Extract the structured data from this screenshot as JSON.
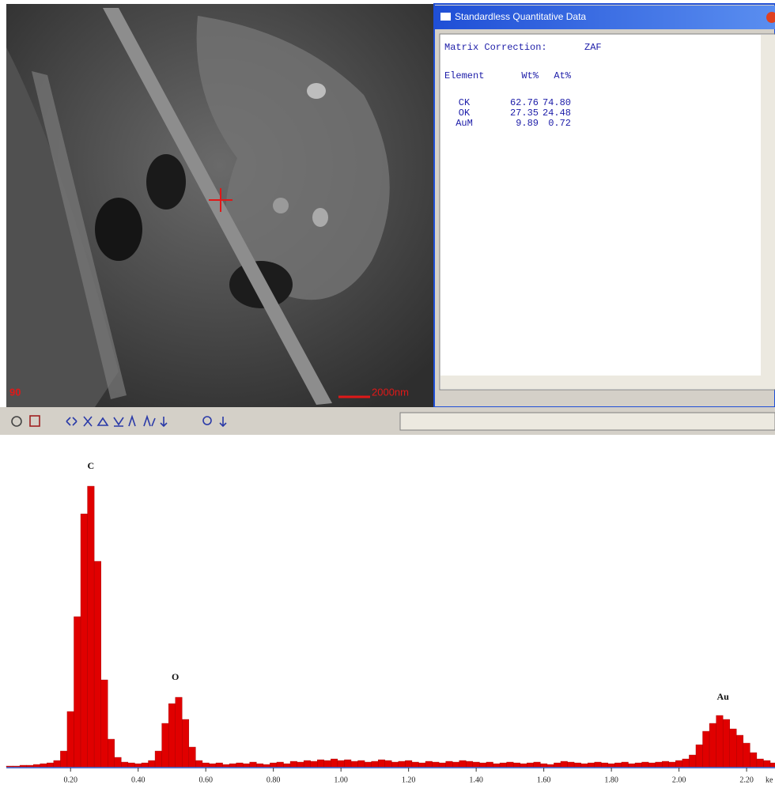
{
  "sem_image": {
    "corner_label": "90",
    "scale_bar_label": "2000nm"
  },
  "window": {
    "title": "Standardless Quantitative Data",
    "matrix_correction_label": "Matrix Correction:",
    "matrix_correction_value": "ZAF",
    "table": {
      "header": [
        "Element",
        "Wt%",
        "At%"
      ],
      "rows": [
        [
          "CK",
          "62.76",
          "74.80"
        ],
        [
          "OK",
          "27.35",
          "24.48"
        ],
        [
          "AuM",
          "9.89",
          "0.72"
        ]
      ]
    }
  },
  "chart_data": {
    "type": "bar",
    "color": "#e00000",
    "x_label": "ke",
    "x": [
      0.02,
      0.04,
      0.06,
      0.08,
      0.1,
      0.12,
      0.14,
      0.16,
      0.18,
      0.2,
      0.22,
      0.24,
      0.26,
      0.28,
      0.3,
      0.32,
      0.34,
      0.36,
      0.38,
      0.4,
      0.42,
      0.44,
      0.46,
      0.48,
      0.5,
      0.52,
      0.54,
      0.56,
      0.58,
      0.6,
      0.62,
      0.64,
      0.66,
      0.68,
      0.7,
      0.72,
      0.74,
      0.76,
      0.78,
      0.8,
      0.82,
      0.84,
      0.86,
      0.88,
      0.9,
      0.92,
      0.94,
      0.96,
      0.98,
      1.0,
      1.02,
      1.04,
      1.06,
      1.08,
      1.1,
      1.12,
      1.14,
      1.16,
      1.18,
      1.2,
      1.22,
      1.24,
      1.26,
      1.28,
      1.3,
      1.32,
      1.34,
      1.36,
      1.38,
      1.4,
      1.42,
      1.44,
      1.46,
      1.48,
      1.5,
      1.52,
      1.54,
      1.56,
      1.58,
      1.6,
      1.62,
      1.64,
      1.66,
      1.68,
      1.7,
      1.72,
      1.74,
      1.76,
      1.78,
      1.8,
      1.82,
      1.84,
      1.86,
      1.88,
      1.9,
      1.92,
      1.94,
      1.96,
      1.98,
      2.0,
      2.02,
      2.04,
      2.06,
      2.08,
      2.1,
      2.12,
      2.14,
      2.16,
      2.18,
      2.2,
      2.22,
      2.24,
      2.26,
      2.28
    ],
    "values": [
      1,
      1,
      2,
      2,
      3,
      4,
      5,
      8,
      20,
      70,
      190,
      320,
      355,
      260,
      110,
      35,
      12,
      6,
      5,
      4,
      5,
      8,
      20,
      55,
      80,
      88,
      60,
      25,
      8,
      5,
      4,
      5,
      3,
      4,
      5,
      4,
      6,
      4,
      3,
      5,
      6,
      4,
      7,
      6,
      8,
      7,
      9,
      8,
      10,
      8,
      9,
      7,
      8,
      6,
      7,
      9,
      8,
      6,
      7,
      8,
      6,
      5,
      7,
      6,
      5,
      7,
      6,
      8,
      7,
      6,
      5,
      6,
      4,
      5,
      6,
      5,
      4,
      5,
      6,
      4,
      3,
      5,
      7,
      6,
      5,
      4,
      5,
      6,
      5,
      4,
      5,
      6,
      4,
      5,
      6,
      5,
      6,
      7,
      6,
      8,
      10,
      15,
      28,
      45,
      55,
      65,
      60,
      48,
      40,
      30,
      18,
      10,
      8,
      5
    ],
    "xlim": [
      0.01,
      2.284
    ],
    "ylim": [
      0,
      400
    ],
    "xticks": [
      {
        "value": 0.2,
        "label": "0.20"
      },
      {
        "value": 0.4,
        "label": "0.40"
      },
      {
        "value": 0.6,
        "label": "0.60"
      },
      {
        "value": 0.8,
        "label": "0.80"
      },
      {
        "value": 1.0,
        "label": "1.00"
      },
      {
        "value": 1.2,
        "label": "1.20"
      },
      {
        "value": 1.4,
        "label": "1.40"
      },
      {
        "value": 1.6,
        "label": "1.60"
      },
      {
        "value": 1.8,
        "label": "1.80"
      },
      {
        "value": 2.0,
        "label": "2.00"
      },
      {
        "value": 2.2,
        "label": "2.20"
      }
    ],
    "annotations": [
      {
        "text": "C",
        "x": 0.26,
        "y": 372
      },
      {
        "text": "O",
        "x": 0.51,
        "y": 105
      },
      {
        "text": "Au",
        "x": 2.13,
        "y": 80
      }
    ]
  }
}
